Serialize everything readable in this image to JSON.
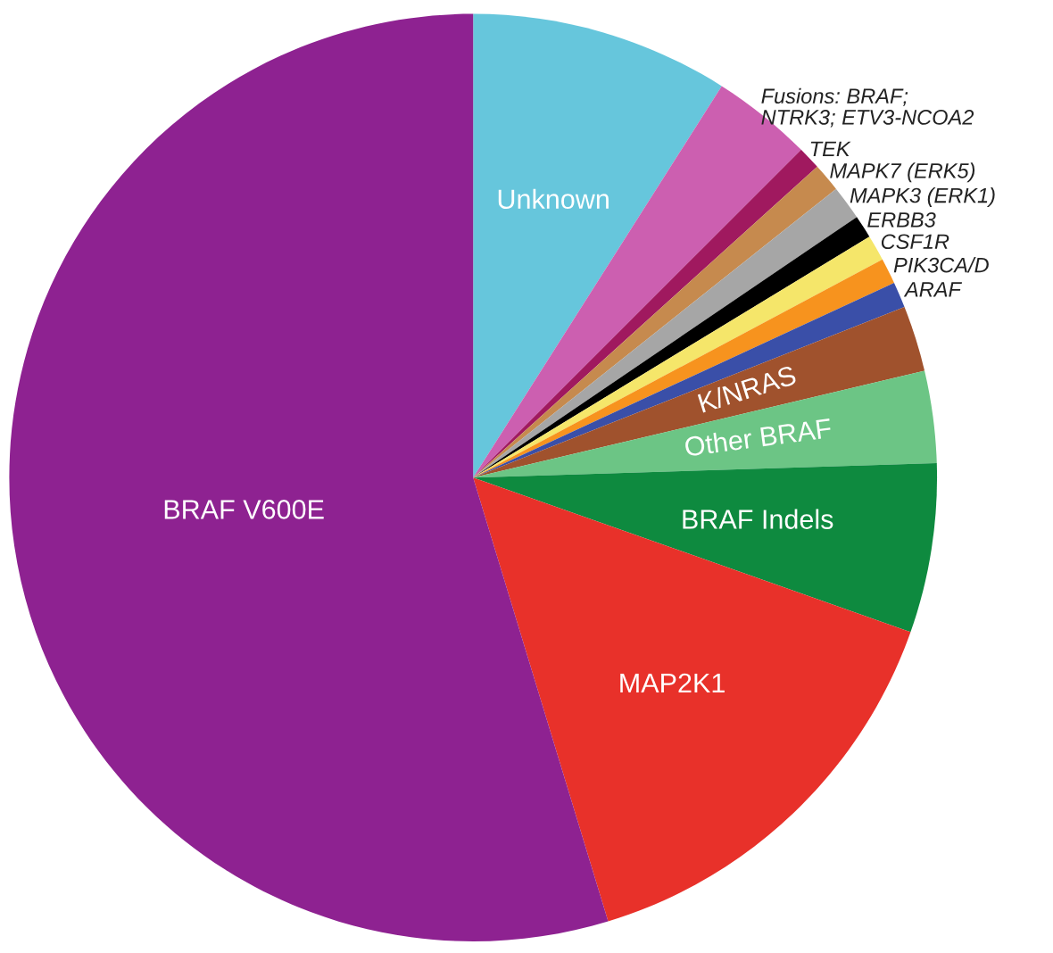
{
  "chart_data": {
    "type": "pie",
    "categories": [
      "Unknown",
      "Fusions: BRAF;\nNTRK3; ETV3-NCOA2",
      "TEK",
      "MAPK7 (ERK5)",
      "MAPK3 (ERK1)",
      "ERBB3",
      "CSF1R",
      "PIK3CA/D",
      "ARAF",
      "K/NRAS",
      "Other BRAF",
      "BRAF Indels",
      "MAP2K1",
      "BRAF V600E"
    ],
    "values": [
      9.0,
      3.5,
      0.8,
      1.0,
      1.2,
      0.8,
      0.9,
      0.9,
      0.9,
      2.3,
      3.2,
      5.9,
      14.9,
      54.7
    ],
    "colors": [
      "#66c6dc",
      "#cc5fb0",
      "#a0195f",
      "#c68a4e",
      "#a6a6a6",
      "#000000",
      "#f5e66a",
      "#f7931e",
      "#3a4fa8",
      "#a0522d",
      "#6cc585",
      "#0e8a3f",
      "#e8312a",
      "#8e2291"
    ]
  }
}
